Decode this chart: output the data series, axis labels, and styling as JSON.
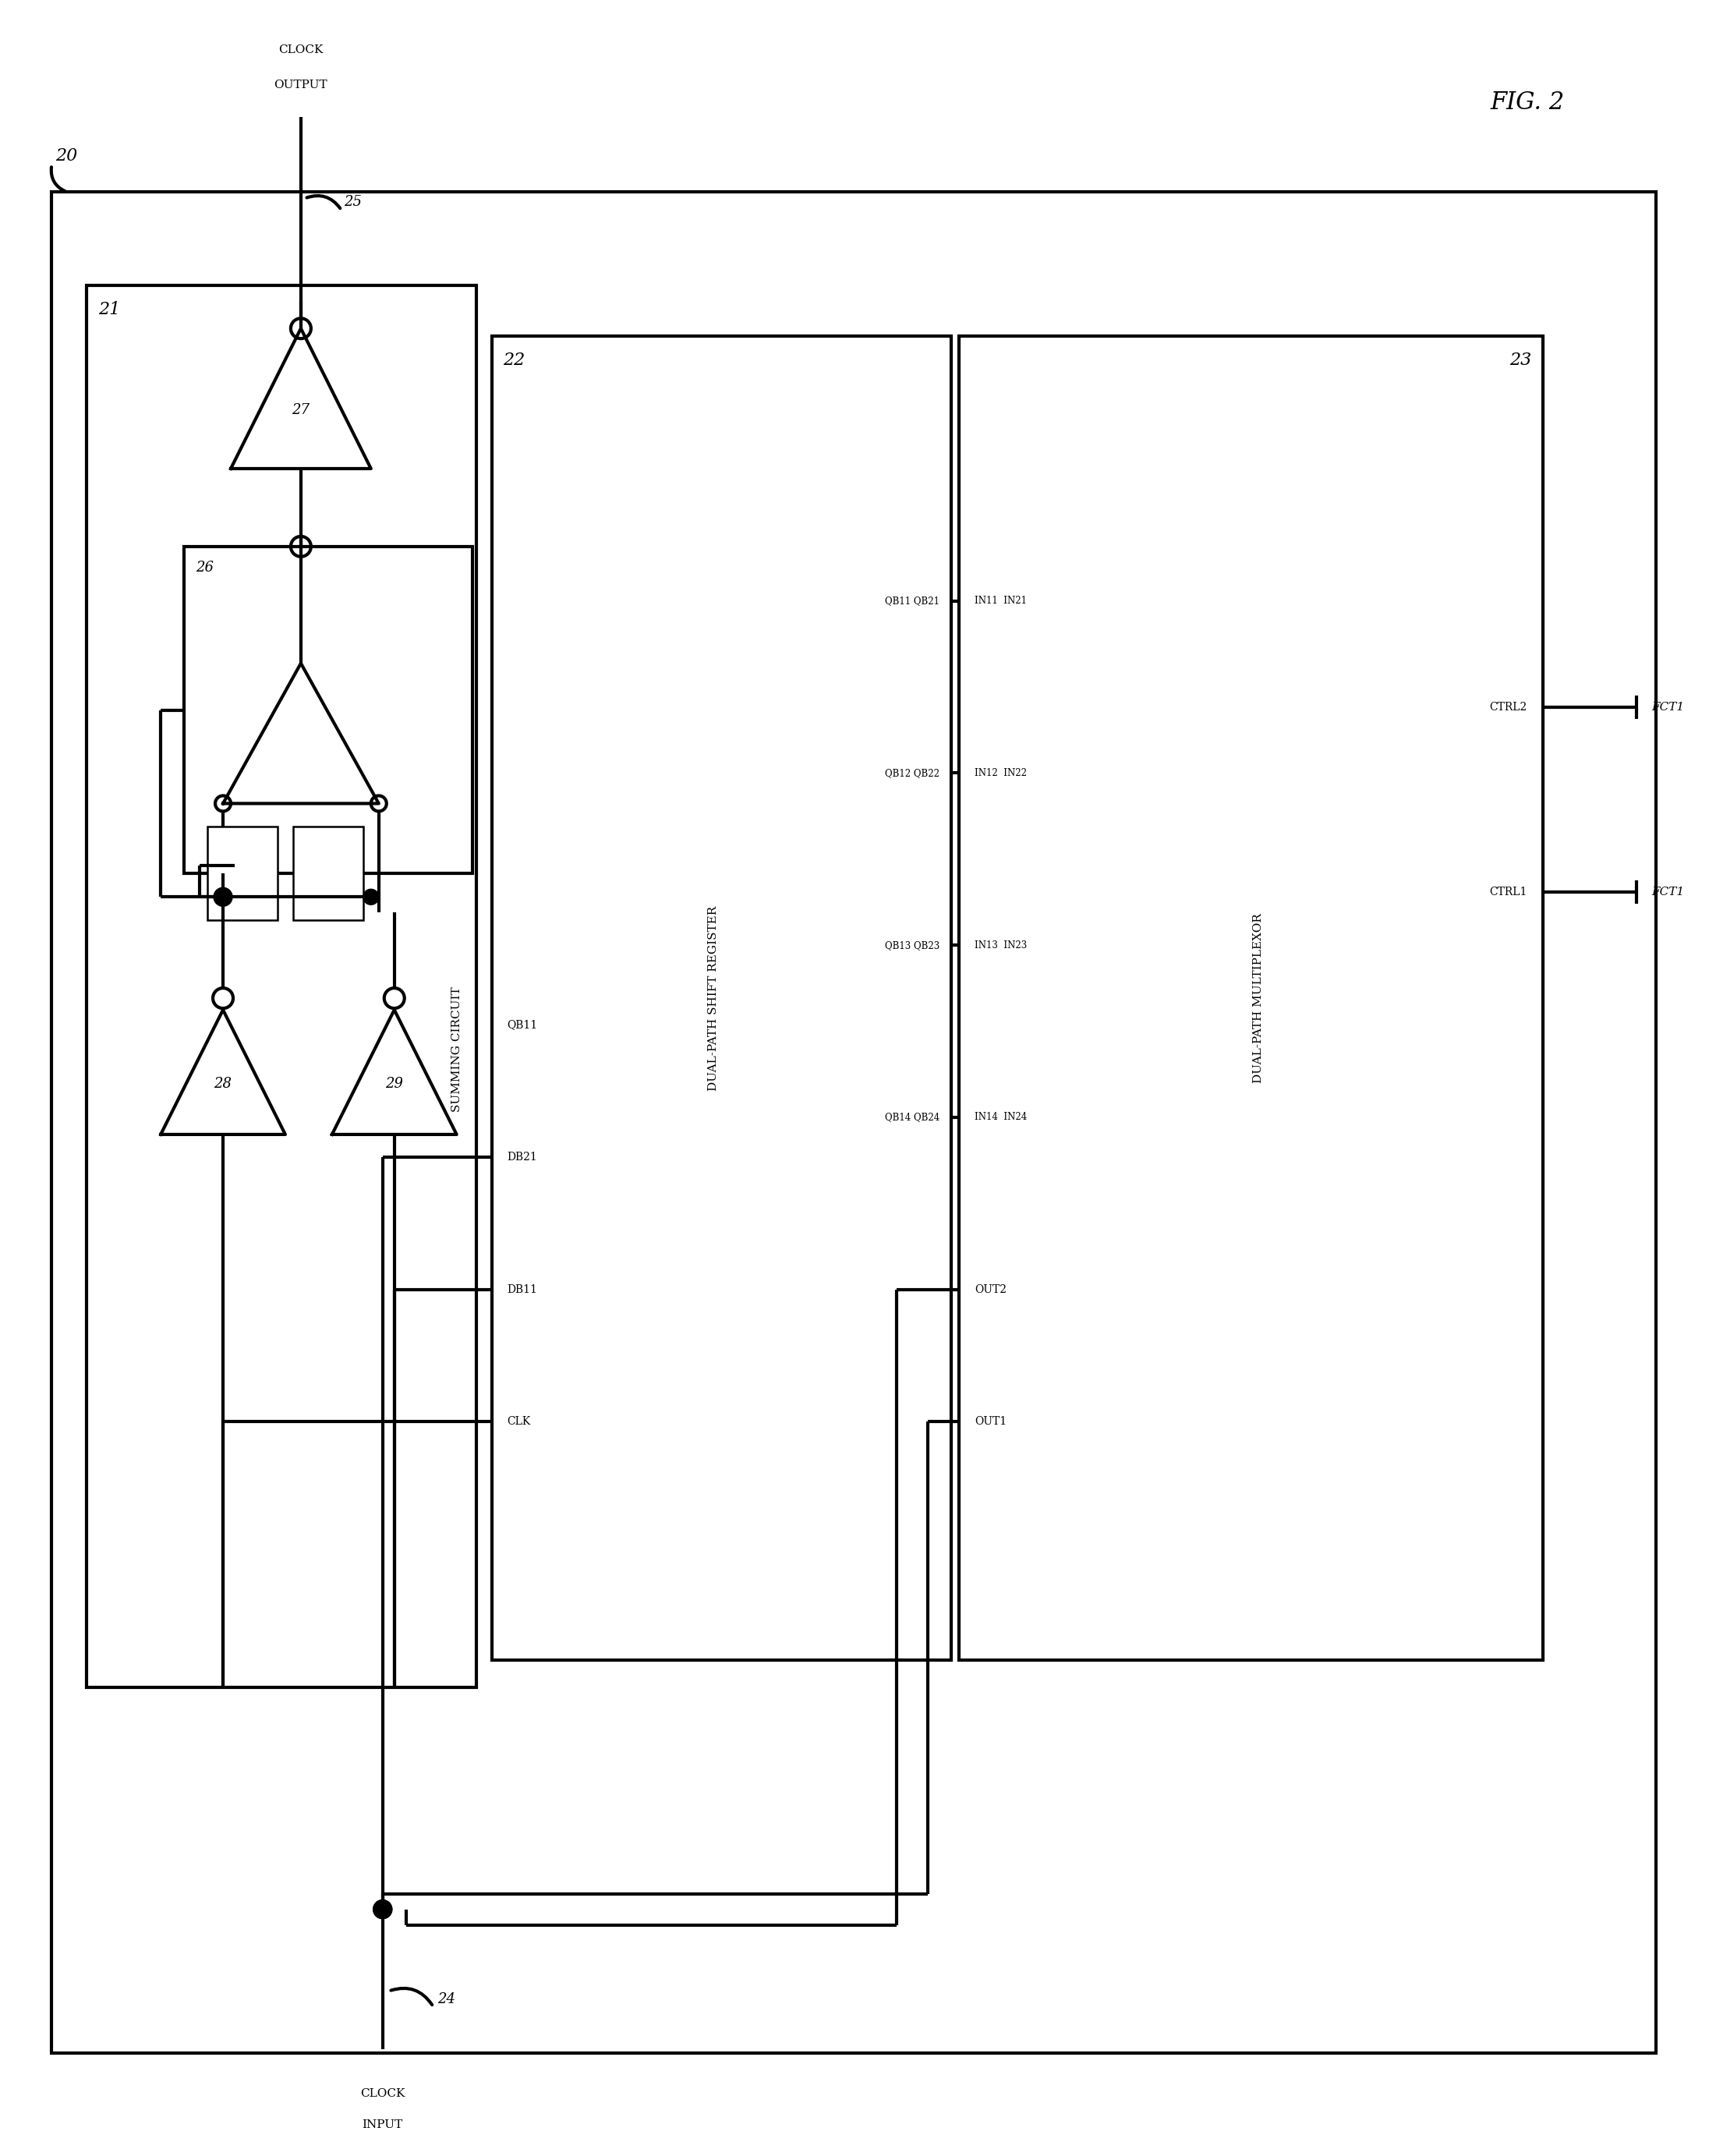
{
  "fig_width": 21.92,
  "fig_height": 27.65,
  "bg": "#ffffff",
  "lw": 3.0,
  "thin_lw": 1.8,
  "font_size_large": 16,
  "font_size_med": 13,
  "font_size_small": 11,
  "font_size_tiny": 9.5,
  "font_size_port": 10,
  "title": "FIG. 2",
  "label_20": "20",
  "label_21": "21",
  "label_22": "22",
  "label_23": "23",
  "label_24": "24",
  "label_25": "25",
  "label_26": "26",
  "label_27": "27",
  "label_28": "28",
  "label_29": "29"
}
